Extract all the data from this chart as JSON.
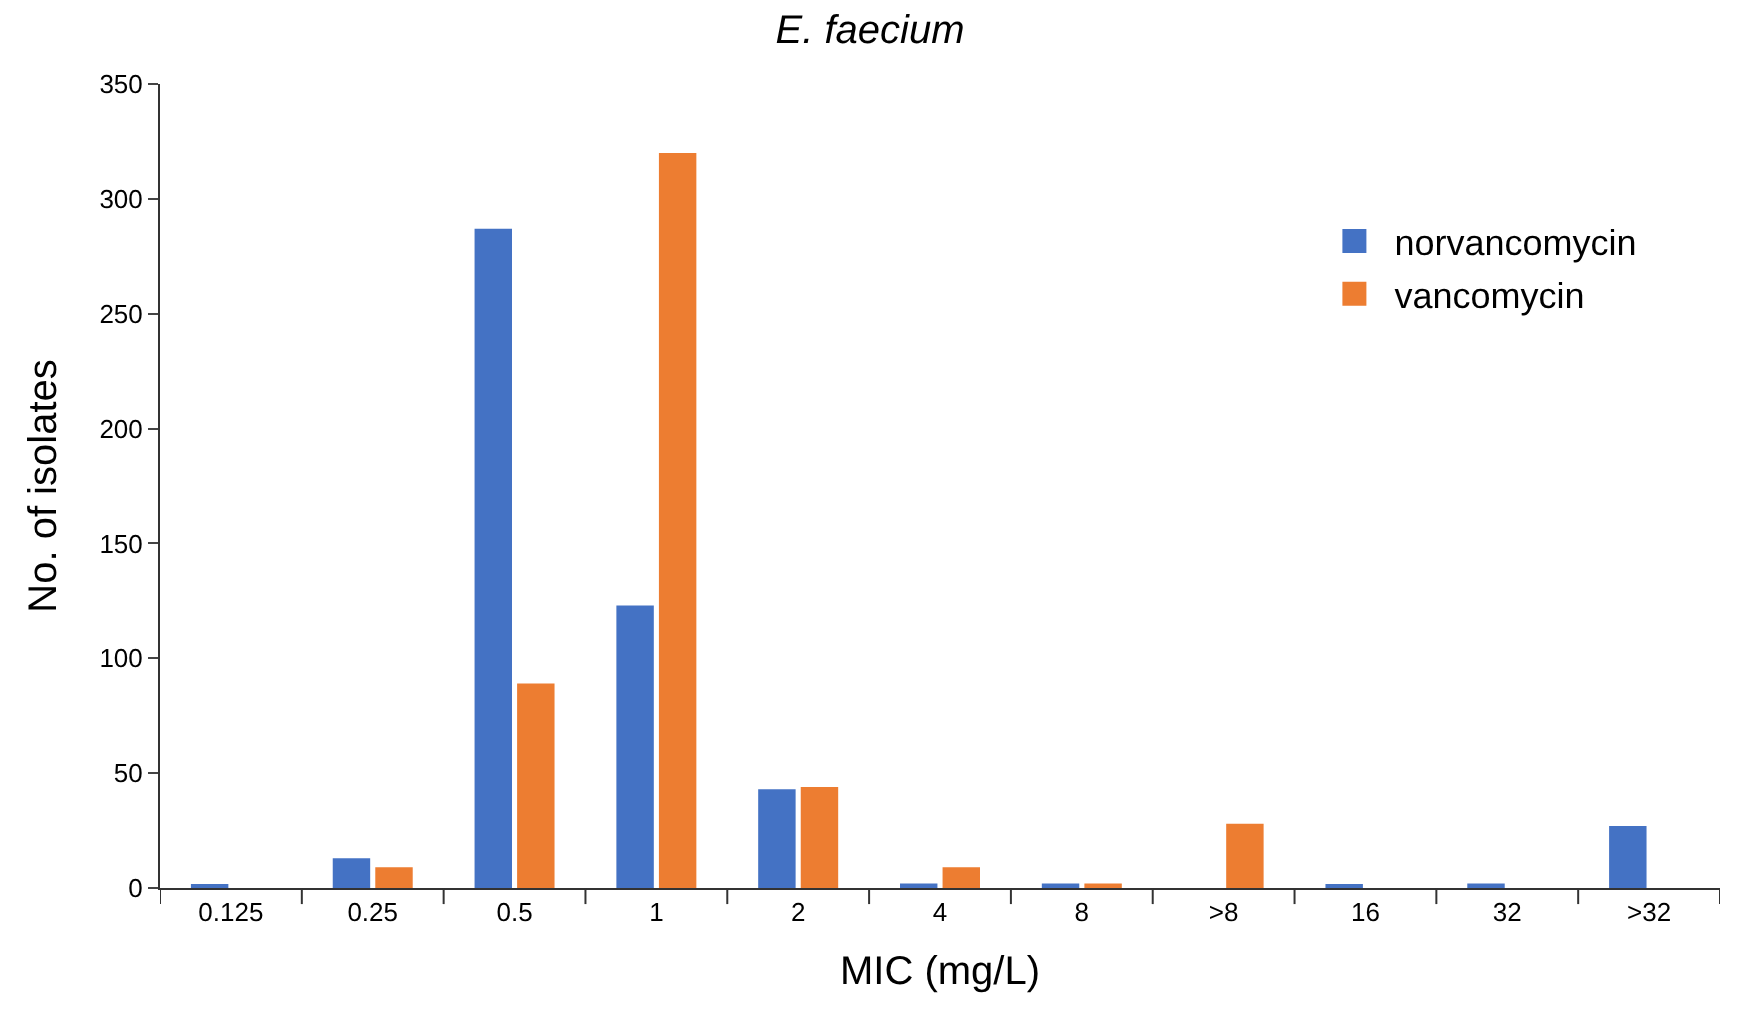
{
  "chart_data": {
    "type": "bar",
    "title": "E. faecium",
    "xlabel": "MIC (mg/L)",
    "ylabel": "No. of isolates",
    "categories": [
      "0.125",
      "0.25",
      "0.5",
      "1",
      "2",
      "4",
      "8",
      ">8",
      "16",
      "32",
      ">32"
    ],
    "series": [
      {
        "name": "norvancomycin",
        "color": "#4472c4",
        "values": [
          1,
          13,
          287,
          123,
          43,
          2,
          2,
          0,
          1,
          2,
          27
        ]
      },
      {
        "name": "vancomycin",
        "color": "#ed7d31",
        "values": [
          0,
          9,
          89,
          320,
          44,
          9,
          2,
          28,
          0,
          0,
          0
        ]
      }
    ],
    "ylim": [
      0,
      350
    ],
    "yticks": [
      0,
      50,
      100,
      150,
      200,
      250,
      300,
      350
    ],
    "legend": "top right"
  }
}
